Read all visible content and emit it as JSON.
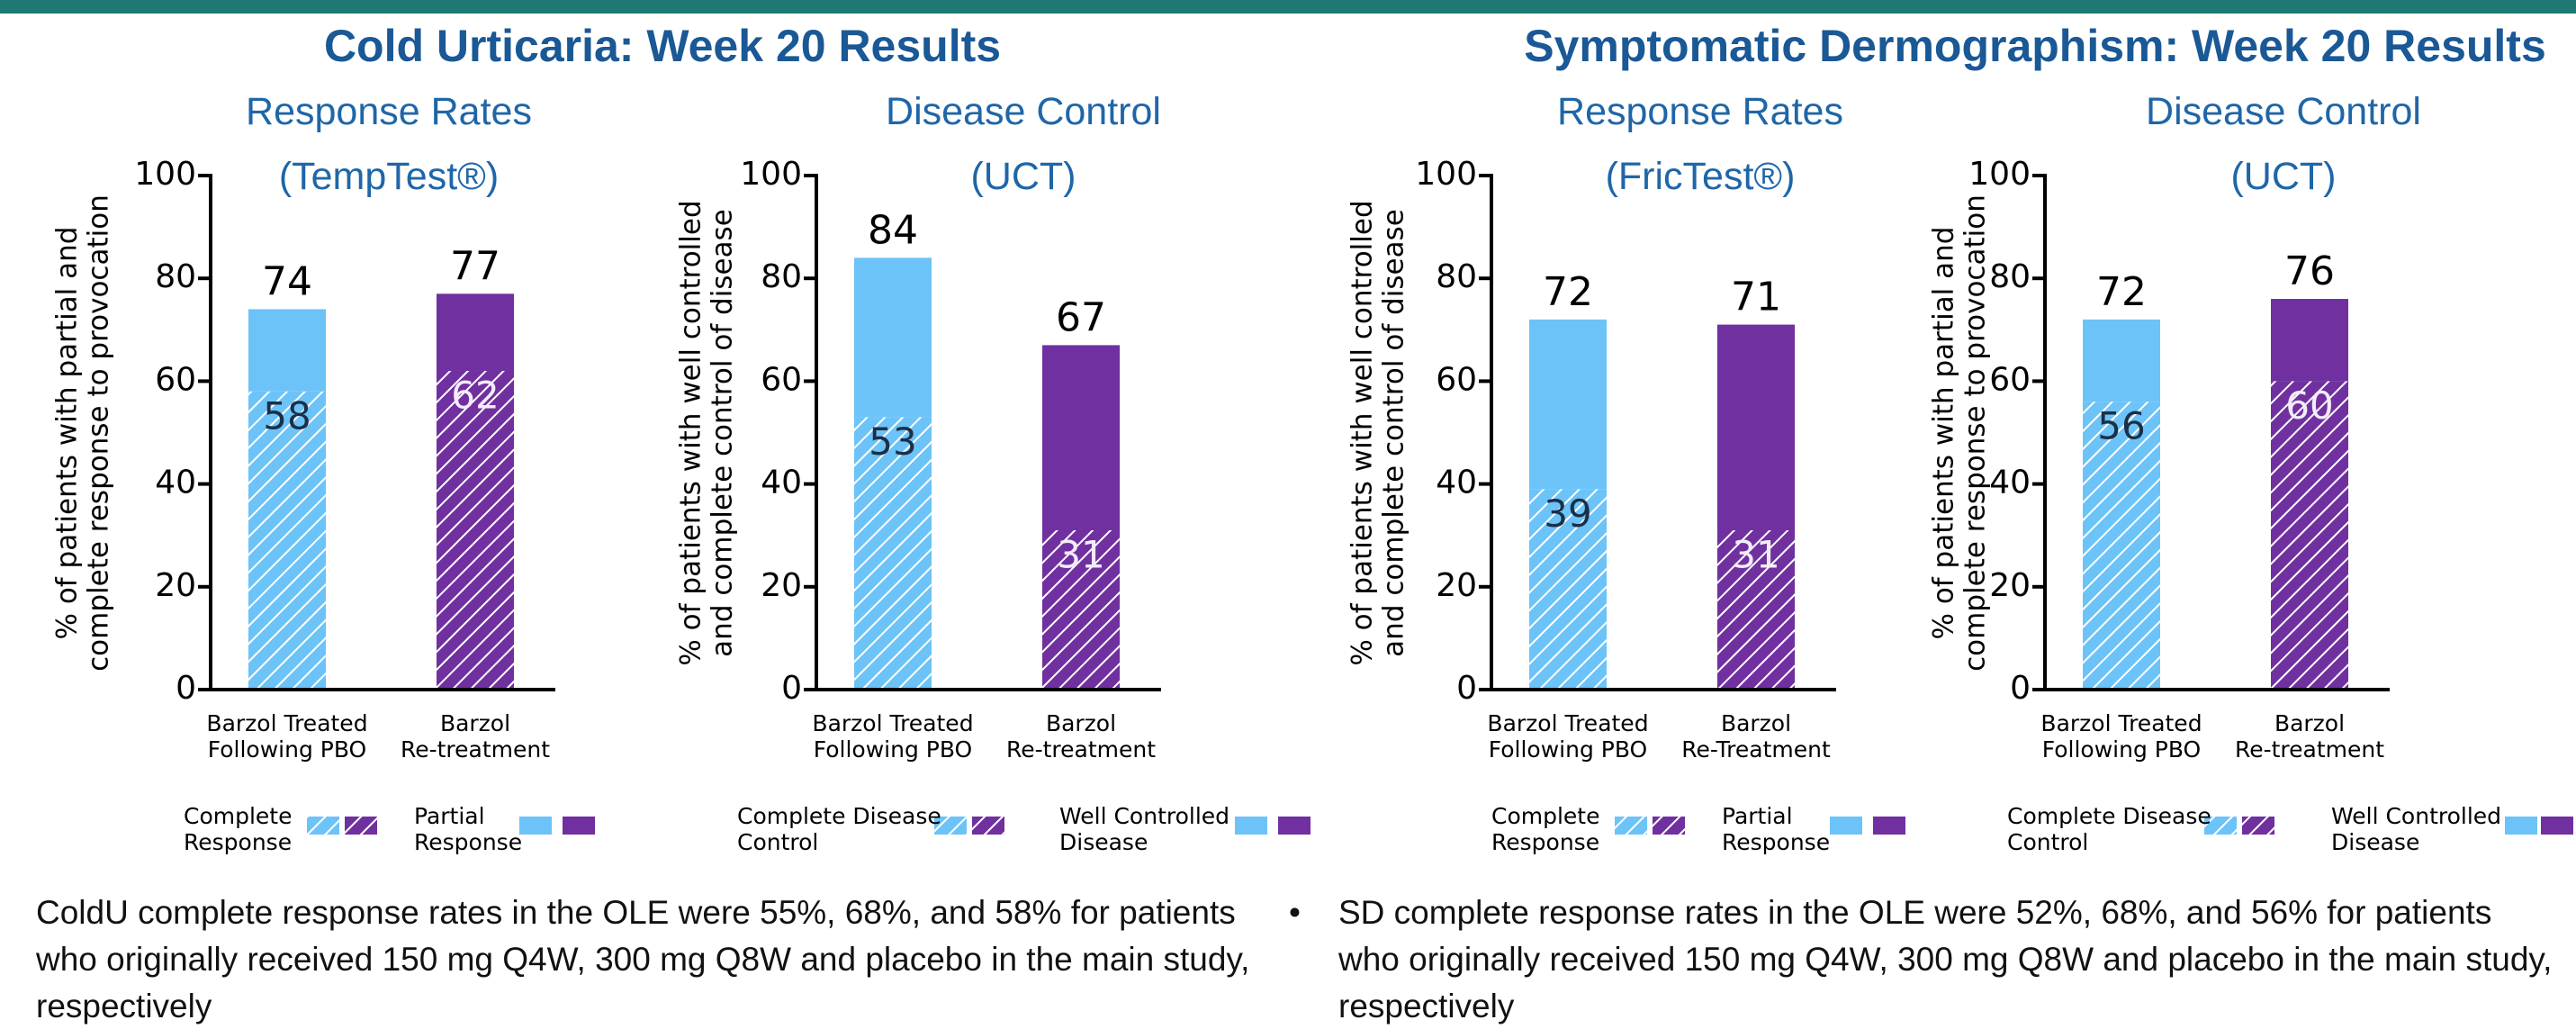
{
  "sections": [
    {
      "title": "Cold Urticaria: Week 20 Results"
    },
    {
      "title": "Symptomatic Dermographism: Week 20 Results"
    }
  ],
  "bullets": [
    "ColdU complete response rates in the OLE were 55%, 68%, and 58% for patients who originally received 150 mg Q4W, 300 mg Q8W and placebo in the main study, respectively",
    "SD complete response rates in the OLE were 52%, 68%, and 56% for patients who originally received 150 mg Q4W, 300 mg Q8W and placebo in the main study, respectively"
  ],
  "chart_data": [
    {
      "type": "bar",
      "stacked": true,
      "title": "Response Rates",
      "subtitle": "(TempTest®)",
      "ylabel": "% of patients with partial and\ncomplete response to provocation",
      "categories": [
        "Barzol Treated\nFollowing PBO",
        "Barzol\nRe-treatment"
      ],
      "bar_colors": [
        "#6cc3f8",
        "#7030a0"
      ],
      "series": [
        {
          "name": "Complete\nResponse",
          "hatch": true,
          "values": [
            58,
            62
          ]
        },
        {
          "name": "Partial\nResponse",
          "hatch": false,
          "values": [
            16,
            15
          ]
        }
      ],
      "totals": [
        74,
        77
      ],
      "ylim": [
        0,
        100
      ],
      "yticks": [
        0,
        20,
        40,
        60,
        80,
        100
      ]
    },
    {
      "type": "bar",
      "stacked": true,
      "title": "Disease Control",
      "subtitle": "(UCT)",
      "ylabel": "% of patients with well controlled\nand complete control of disease",
      "categories": [
        "Barzol Treated\nFollowing PBO",
        "Barzol\nRe-treatment"
      ],
      "bar_colors": [
        "#6cc3f8",
        "#7030a0"
      ],
      "series": [
        {
          "name": "Complete Disease\nControl",
          "hatch": true,
          "values": [
            53,
            31
          ]
        },
        {
          "name": "Well Controlled\nDisease",
          "hatch": false,
          "values": [
            31,
            36
          ]
        }
      ],
      "totals": [
        84,
        67
      ],
      "ylim": [
        0,
        100
      ],
      "yticks": [
        0,
        20,
        40,
        60,
        80,
        100
      ]
    },
    {
      "type": "bar",
      "stacked": true,
      "title": "Response Rates",
      "subtitle": "(FricTest®)",
      "ylabel": "% of patients with well controlled\nand complete control of disease",
      "categories": [
        "Barzol Treated\nFollowing PBO",
        "Barzol\nRe-Treatment"
      ],
      "bar_colors": [
        "#6cc3f8",
        "#7030a0"
      ],
      "series": [
        {
          "name": "Complete\nResponse",
          "hatch": true,
          "values": [
            39,
            31
          ]
        },
        {
          "name": "Partial\nResponse",
          "hatch": false,
          "values": [
            33,
            40
          ]
        }
      ],
      "totals": [
        72,
        71
      ],
      "ylim": [
        0,
        100
      ],
      "yticks": [
        0,
        20,
        40,
        60,
        80,
        100
      ]
    },
    {
      "type": "bar",
      "stacked": true,
      "title": "Disease Control",
      "subtitle": "(UCT)",
      "ylabel": "% of patients with partial and\ncomplete response to provocation",
      "categories": [
        "Barzol Treated\nFollowing PBO",
        "Barzol\nRe-treatment"
      ],
      "bar_colors": [
        "#6cc3f8",
        "#7030a0"
      ],
      "series": [
        {
          "name": "Complete Disease\nControl",
          "hatch": true,
          "values": [
            56,
            60
          ]
        },
        {
          "name": "Well Controlled\nDisease",
          "hatch": false,
          "values": [
            16,
            16
          ]
        }
      ],
      "totals": [
        72,
        76
      ],
      "ylim": [
        0,
        100
      ],
      "yticks": [
        0,
        20,
        40,
        60,
        80,
        100
      ]
    }
  ]
}
